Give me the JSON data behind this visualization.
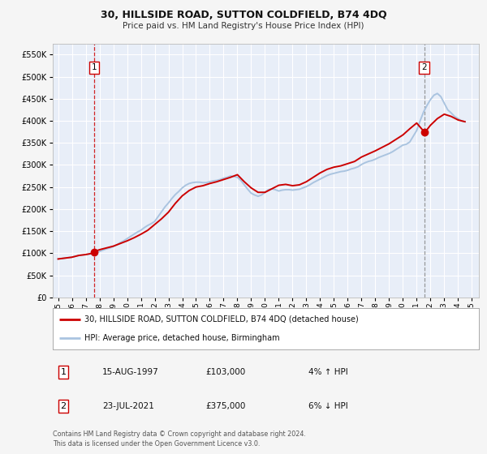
{
  "title": "30, HILLSIDE ROAD, SUTTON COLDFIELD, B74 4DQ",
  "subtitle": "Price paid vs. HM Land Registry's House Price Index (HPI)",
  "legend_line1": "30, HILLSIDE ROAD, SUTTON COLDFIELD, B74 4DQ (detached house)",
  "legend_line2": "HPI: Average price, detached house, Birmingham",
  "sale1_label": "1",
  "sale1_date": "15-AUG-1997",
  "sale1_price": "£103,000",
  "sale1_hpi": "4% ↑ HPI",
  "sale2_label": "2",
  "sale2_date": "23-JUL-2021",
  "sale2_price": "£375,000",
  "sale2_hpi": "6% ↓ HPI",
  "footnote1": "Contains HM Land Registry data © Crown copyright and database right 2024.",
  "footnote2": "This data is licensed under the Open Government Licence v3.0.",
  "hpi_color": "#aac4e0",
  "price_color": "#cc0000",
  "sale_marker_color": "#cc0000",
  "vline1_color": "#cc0000",
  "vline2_color": "#888888",
  "plot_bg_color": "#e8eef8",
  "fig_bg_color": "#f5f5f5",
  "grid_color": "#ffffff",
  "ylim": [
    0,
    575000
  ],
  "yticks": [
    0,
    50000,
    100000,
    150000,
    200000,
    250000,
    300000,
    350000,
    400000,
    450000,
    500000,
    550000
  ],
  "xlim_start": 1994.6,
  "xlim_end": 2025.5,
  "sale1_x": 1997.62,
  "sale1_y": 103000,
  "sale2_x": 2021.55,
  "sale2_y": 375000,
  "hpi_x": [
    1995.0,
    1995.25,
    1995.5,
    1995.75,
    1996.0,
    1996.25,
    1996.5,
    1996.75,
    1997.0,
    1997.25,
    1997.5,
    1997.75,
    1998.0,
    1998.25,
    1998.5,
    1998.75,
    1999.0,
    1999.25,
    1999.5,
    1999.75,
    2000.0,
    2000.25,
    2000.5,
    2000.75,
    2001.0,
    2001.25,
    2001.5,
    2001.75,
    2002.0,
    2002.25,
    2002.5,
    2002.75,
    2003.0,
    2003.25,
    2003.5,
    2003.75,
    2004.0,
    2004.25,
    2004.5,
    2004.75,
    2005.0,
    2005.25,
    2005.5,
    2005.75,
    2006.0,
    2006.25,
    2006.5,
    2006.75,
    2007.0,
    2007.25,
    2007.5,
    2007.75,
    2008.0,
    2008.25,
    2008.5,
    2008.75,
    2009.0,
    2009.25,
    2009.5,
    2009.75,
    2010.0,
    2010.25,
    2010.5,
    2010.75,
    2011.0,
    2011.25,
    2011.5,
    2011.75,
    2012.0,
    2012.25,
    2012.5,
    2012.75,
    2013.0,
    2013.25,
    2013.5,
    2013.75,
    2014.0,
    2014.25,
    2014.5,
    2014.75,
    2015.0,
    2015.25,
    2015.5,
    2015.75,
    2016.0,
    2016.25,
    2016.5,
    2016.75,
    2017.0,
    2017.25,
    2017.5,
    2017.75,
    2018.0,
    2018.25,
    2018.5,
    2018.75,
    2019.0,
    2019.25,
    2019.5,
    2019.75,
    2020.0,
    2020.25,
    2020.5,
    2020.75,
    2021.0,
    2021.25,
    2021.5,
    2021.75,
    2022.0,
    2022.25,
    2022.5,
    2022.75,
    2023.0,
    2023.25,
    2023.5,
    2023.75,
    2024.0,
    2024.25,
    2024.5
  ],
  "hpi_y": [
    87000,
    88000,
    89000,
    90000,
    91000,
    93000,
    95000,
    96000,
    97000,
    98000,
    100000,
    101000,
    104000,
    107000,
    110000,
    112000,
    115000,
    119000,
    124000,
    128000,
    133000,
    138000,
    143000,
    148000,
    152000,
    158000,
    163000,
    167000,
    172000,
    183000,
    194000,
    205000,
    214000,
    224000,
    233000,
    240000,
    248000,
    254000,
    258000,
    260000,
    261000,
    261000,
    260000,
    260000,
    262000,
    264000,
    265000,
    267000,
    270000,
    272000,
    275000,
    274000,
    272000,
    265000,
    255000,
    245000,
    236000,
    232000,
    229000,
    232000,
    238000,
    244000,
    246000,
    244000,
    241000,
    243000,
    244000,
    244000,
    243000,
    244000,
    245000,
    248000,
    251000,
    255000,
    260000,
    264000,
    268000,
    272000,
    276000,
    279000,
    281000,
    283000,
    285000,
    286000,
    288000,
    291000,
    293000,
    296000,
    301000,
    305000,
    308000,
    310000,
    313000,
    317000,
    320000,
    323000,
    326000,
    330000,
    335000,
    340000,
    345000,
    347000,
    352000,
    365000,
    378000,
    400000,
    420000,
    435000,
    448000,
    458000,
    462000,
    455000,
    440000,
    425000,
    418000,
    410000,
    405000,
    400000,
    398000
  ],
  "price_x": [
    1995.0,
    1995.5,
    1996.0,
    1996.5,
    1997.0,
    1997.5,
    1997.62,
    1997.75,
    1998.0,
    1998.5,
    1999.0,
    1999.5,
    2000.0,
    2000.5,
    2001.0,
    2001.5,
    2002.0,
    2002.5,
    2003.0,
    2003.5,
    2004.0,
    2004.5,
    2005.0,
    2005.5,
    2006.0,
    2006.5,
    2007.0,
    2007.5,
    2008.0,
    2008.5,
    2009.0,
    2009.5,
    2010.0,
    2010.5,
    2011.0,
    2011.5,
    2012.0,
    2012.5,
    2013.0,
    2013.5,
    2014.0,
    2014.5,
    2015.0,
    2015.5,
    2016.0,
    2016.5,
    2017.0,
    2017.5,
    2018.0,
    2018.5,
    2019.0,
    2019.5,
    2020.0,
    2020.5,
    2021.0,
    2021.55,
    2021.75,
    2022.0,
    2022.5,
    2023.0,
    2023.5,
    2024.0,
    2024.5
  ],
  "price_y": [
    87000,
    89000,
    91000,
    95000,
    97000,
    100000,
    103000,
    105000,
    108000,
    112000,
    116000,
    122000,
    128000,
    135000,
    143000,
    152000,
    165000,
    178000,
    193000,
    213000,
    230000,
    242000,
    250000,
    253000,
    258000,
    262000,
    267000,
    272000,
    278000,
    262000,
    248000,
    238000,
    238000,
    246000,
    254000,
    256000,
    253000,
    255000,
    262000,
    272000,
    282000,
    290000,
    295000,
    298000,
    303000,
    308000,
    318000,
    325000,
    332000,
    340000,
    348000,
    358000,
    368000,
    382000,
    395000,
    375000,
    380000,
    390000,
    405000,
    415000,
    410000,
    402000,
    398000
  ]
}
